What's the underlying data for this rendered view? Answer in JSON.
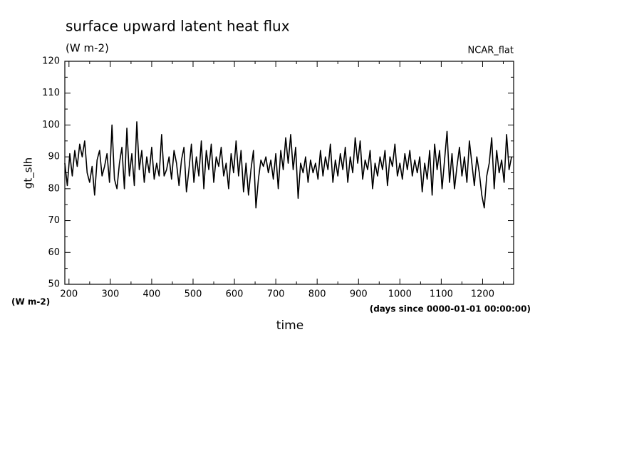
{
  "chart_data": {
    "type": "line",
    "title": "surface upward latent heat flux",
    "subtitle": "(W m-2)",
    "annotation": "NCAR_flat",
    "ylabel": "gt_slh",
    "yunits": "(W m-2)",
    "xlabel": "time",
    "xunits": "(days since 0000-01-01 00:00:00)",
    "color": "#000000",
    "xlim": [
      190,
      1275
    ],
    "ylim": [
      50,
      120
    ],
    "xticks": [
      200,
      300,
      400,
      500,
      600,
      700,
      800,
      900,
      1000,
      1100,
      1200
    ],
    "yticks": [
      50,
      60,
      70,
      80,
      90,
      100,
      110,
      120
    ],
    "x": [
      190,
      196,
      202,
      208,
      214,
      220,
      226,
      232,
      238,
      244,
      250,
      256,
      262,
      268,
      274,
      280,
      286,
      292,
      298,
      304,
      310,
      316,
      322,
      328,
      334,
      340,
      346,
      352,
      358,
      364,
      370,
      376,
      382,
      388,
      394,
      400,
      406,
      412,
      418,
      424,
      430,
      436,
      442,
      448,
      454,
      460,
      466,
      472,
      478,
      484,
      490,
      496,
      502,
      508,
      514,
      520,
      526,
      532,
      538,
      544,
      550,
      556,
      562,
      568,
      574,
      580,
      586,
      592,
      598,
      604,
      610,
      616,
      622,
      628,
      634,
      640,
      646,
      652,
      658,
      664,
      670,
      676,
      682,
      688,
      694,
      700,
      706,
      712,
      718,
      724,
      730,
      736,
      742,
      748,
      754,
      760,
      766,
      772,
      778,
      784,
      790,
      796,
      802,
      808,
      814,
      820,
      826,
      832,
      838,
      844,
      850,
      856,
      862,
      868,
      874,
      880,
      886,
      892,
      898,
      904,
      910,
      916,
      922,
      928,
      934,
      940,
      946,
      952,
      958,
      964,
      970,
      976,
      982,
      988,
      994,
      1000,
      1006,
      1012,
      1018,
      1024,
      1030,
      1036,
      1042,
      1048,
      1054,
      1060,
      1066,
      1072,
      1078,
      1084,
      1090,
      1096,
      1102,
      1108,
      1114,
      1120,
      1126,
      1132,
      1138,
      1144,
      1150,
      1156,
      1162,
      1168,
      1174,
      1180,
      1186,
      1192,
      1198,
      1204,
      1210,
      1216,
      1222,
      1228,
      1234,
      1240,
      1246,
      1252,
      1258,
      1264,
      1270
    ],
    "values": [
      88,
      81,
      91,
      84,
      92,
      87,
      94,
      90,
      95,
      85,
      82,
      87,
      78,
      89,
      92,
      84,
      87,
      91,
      82,
      100,
      83,
      80,
      88,
      93,
      80,
      99,
      84,
      91,
      81,
      101,
      86,
      92,
      82,
      90,
      85,
      93,
      83,
      88,
      84,
      97,
      84,
      86,
      90,
      83,
      92,
      88,
      81,
      89,
      93,
      79,
      86,
      94,
      82,
      90,
      84,
      95,
      80,
      92,
      86,
      94,
      82,
      90,
      87,
      93,
      84,
      88,
      80,
      91,
      85,
      95,
      84,
      92,
      79,
      88,
      78,
      86,
      92,
      74,
      83,
      89,
      87,
      90,
      85,
      89,
      83,
      91,
      80,
      92,
      86,
      96,
      88,
      97,
      86,
      93,
      77,
      88,
      85,
      90,
      82,
      89,
      85,
      88,
      83,
      92,
      84,
      90,
      86,
      94,
      82,
      89,
      84,
      91,
      86,
      93,
      82,
      90,
      85,
      96,
      88,
      95,
      83,
      89,
      86,
      92,
      80,
      88,
      84,
      90,
      86,
      92,
      81,
      90,
      87,
      94,
      84,
      88,
      83,
      91,
      86,
      92,
      84,
      89,
      85,
      90,
      79,
      88,
      83,
      92,
      78,
      94,
      86,
      92,
      80,
      89,
      98,
      82,
      91,
      80,
      87,
      93,
      84,
      90,
      82,
      95,
      88,
      81,
      90,
      85,
      78,
      74,
      84,
      88,
      96,
      80,
      92,
      85,
      89,
      82,
      97,
      86,
      90
    ]
  }
}
